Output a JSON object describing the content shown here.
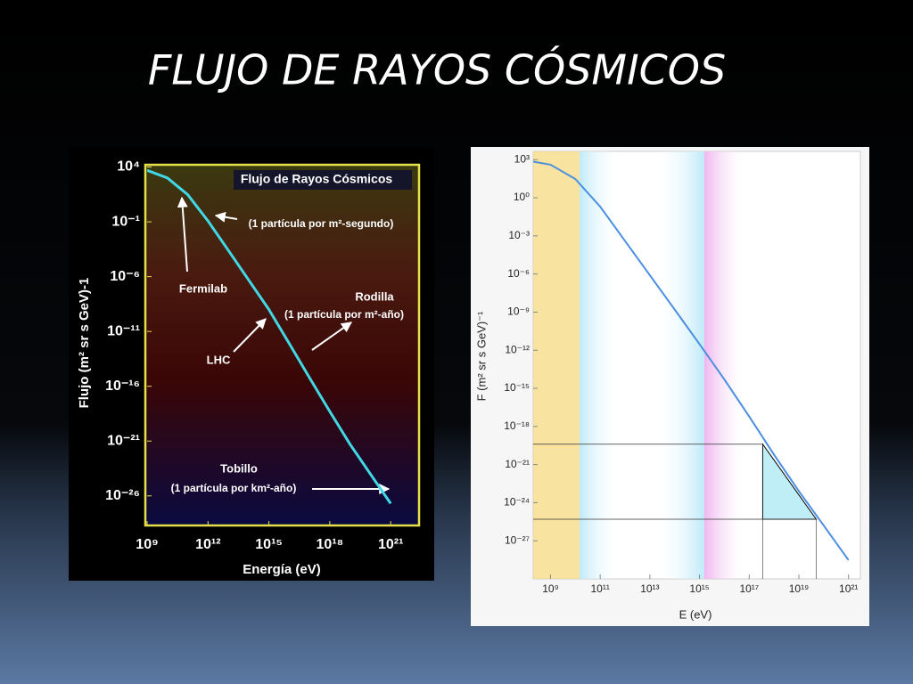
{
  "slide": {
    "title": "FLUJO DE RAYOS CÓSMICOS"
  },
  "chart_data": [
    {
      "type": "line",
      "title": "Flujo de Rayos Cósmicos",
      "xlabel": "Energía (eV)",
      "ylabel": "Flujo  (m² sr s GeV)-1",
      "log_x": true,
      "log_y": true,
      "x": [
        1000000000.0,
        10000000000.0,
        100000000000.0,
        1000000000000.0,
        10000000000000.0,
        100000000000000.0,
        1000000000000000.0,
        1e+16,
        1e+17,
        1e+18,
        1e+19,
        1e+20,
        1e+21
      ],
      "series": [
        {
          "color": "#3fd8e4",
          "values": [
            5000.0,
            1000.0,
            30.0,
            0.12,
            0.00025,
            5e-07,
            1e-09,
            8e-13,
            6e-16,
            5e-19,
            5e-22,
            1e-24,
            2e-27
          ]
        }
      ],
      "xlim": [
        1000000000.0,
        2.5e+22
      ],
      "ylim": [
        2e-29,
        16000.0
      ],
      "xticks": [
        {
          "value": 1000000000.0,
          "label": "10⁹"
        },
        {
          "value": 1000000000000.0,
          "label": "10¹²"
        },
        {
          "value": 1000000000000000.0,
          "label": "10¹⁵"
        },
        {
          "value": 1e+18,
          "label": "10¹⁸"
        },
        {
          "value": 1e+21,
          "label": "10²¹"
        }
      ],
      "yticks": [
        {
          "value": 10000.0,
          "label": "10⁴"
        },
        {
          "value": 0.1,
          "label": "10⁻¹"
        },
        {
          "value": 1e-06,
          "label": "10⁻⁶"
        },
        {
          "value": 1e-11,
          "label": "10⁻¹¹"
        },
        {
          "value": 1e-16,
          "label": "10⁻¹⁶"
        },
        {
          "value": 1e-21,
          "label": "10⁻²¹"
        },
        {
          "value": 1e-26,
          "label": "10⁻²⁶"
        }
      ],
      "annotations": [
        "(1 partícula por m²-segundo)",
        "Fermilab",
        "Rodilla",
        "(1 partícula por m²-año)",
        "LHC",
        "Tobillo",
        "(1 partícula por km²-año)"
      ]
    },
    {
      "type": "line",
      "xlabel": "E (eV)",
      "ylabel": "F (m² sr s GeV)⁻¹",
      "log_x": true,
      "log_y": true,
      "x": [
        200000000.0,
        1000000000.0,
        10000000000.0,
        100000000000.0,
        1000000000000.0,
        10000000000000.0,
        100000000000000.0,
        1000000000000000.0,
        1e+16,
        1e+17,
        1e+18,
        1e+19,
        1e+20,
        1e+21
      ],
      "series": [
        {
          "color": "#4a8fe0",
          "values": [
            700.0,
            400.0,
            30.0,
            0.2,
            0.0004,
            8e-07,
            1.6e-09,
            3e-12,
            5e-15,
            6e-18,
            6e-21,
            8e-24,
            1.6e-26,
            3e-29
          ]
        }
      ],
      "xlim": [
        200000000.0,
        3e+21
      ],
      "ylim": [
        1e-30,
        10000.0
      ],
      "xticks": [
        {
          "value": 1000000000.0,
          "label": "10⁹"
        },
        {
          "value": 100000000000.0,
          "label": "10¹¹"
        },
        {
          "value": 10000000000000.0,
          "label": "10¹³"
        },
        {
          "value": 1000000000000000.0,
          "label": "10¹⁵"
        },
        {
          "value": 1e+17,
          "label": "10¹⁷"
        },
        {
          "value": 1e+19,
          "label": "10¹⁹"
        },
        {
          "value": 1e+21,
          "label": "10²¹"
        }
      ],
      "yticks": [
        {
          "value": 1000.0,
          "label": "10³"
        },
        {
          "value": 1,
          "label": "10⁰"
        },
        {
          "value": 0.001,
          "label": "10⁻³"
        },
        {
          "value": 1e-06,
          "label": "10⁻⁶"
        },
        {
          "value": 1e-09,
          "label": "10⁻⁹"
        },
        {
          "value": 1e-12,
          "label": "10⁻¹²"
        },
        {
          "value": 1e-15,
          "label": "10⁻¹⁵"
        },
        {
          "value": 1e-18,
          "label": "10⁻¹⁸"
        },
        {
          "value": 1e-21,
          "label": "10⁻²¹"
        },
        {
          "value": 1e-24,
          "label": "10⁻²⁴"
        },
        {
          "value": 1e-27,
          "label": "10⁻²⁷"
        }
      ],
      "guides": {
        "x": [
          3.5e+17,
          5e+19
        ],
        "y": [
          4e-20,
          5e-26
        ]
      }
    }
  ]
}
